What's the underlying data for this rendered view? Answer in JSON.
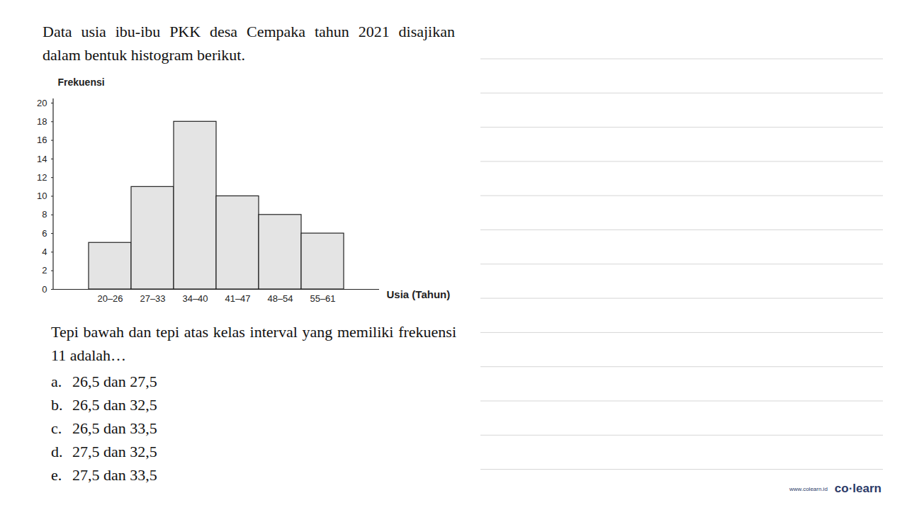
{
  "intro": "Data usia ibu-ibu PKK desa Cempaka tahun 2021 disajikan dalam bentuk histogram berikut.",
  "chart_data": {
    "type": "bar",
    "y_label": "Frekuensi",
    "x_label": "Usia (Tahun)",
    "categories": [
      "20–26",
      "27–33",
      "34–40",
      "41–47",
      "48–54",
      "55–61"
    ],
    "values": [
      5,
      11,
      18,
      10,
      8,
      6
    ],
    "color": "#e4e4e4",
    "ylim": [
      0,
      20
    ],
    "yticks": [
      0,
      2,
      4,
      6,
      8,
      10,
      12,
      14,
      16,
      18,
      20
    ],
    "grid": false
  },
  "question": "Tepi bawah dan tepi atas kelas interval yang memiliki frekuensi 11 adalah…",
  "options": [
    {
      "letter": "a.",
      "text": "26,5 dan 27,5"
    },
    {
      "letter": "b.",
      "text": "26,5 dan 32,5"
    },
    {
      "letter": "c.",
      "text": "26,5 dan 33,5"
    },
    {
      "letter": "d.",
      "text": "27,5 dan 32,5"
    },
    {
      "letter": "e.",
      "text": "27,5 dan 33,5"
    }
  ],
  "watermark": {
    "site": "www.colearn.id",
    "brand": "co·learn"
  }
}
